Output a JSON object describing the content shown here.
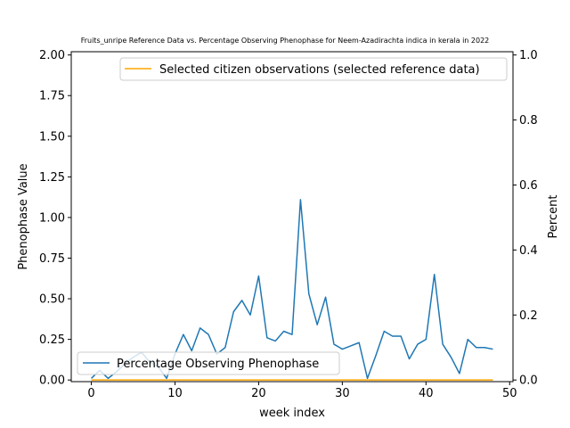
{
  "chart_data": {
    "type": "line",
    "title": "Fruits_unripe Reference Data vs. Percentage Observing Phenophase for Neem-Azadirachta indica in kerala in 2022",
    "xlabel": "week index",
    "ylabel_left": "Phenophase Value",
    "ylabel_right": "Percent",
    "xlim": [
      -2.4,
      50.4
    ],
    "ylim_left": [
      -0.01,
      2.02
    ],
    "ylim_right": [
      -0.005,
      1.01
    ],
    "x_ticks": [
      0,
      10,
      20,
      30,
      40,
      50
    ],
    "y_left_ticks": [
      "0.00",
      "0.25",
      "0.50",
      "0.75",
      "1.00",
      "1.25",
      "1.50",
      "1.75",
      "2.00"
    ],
    "y_right_ticks": [
      "0.0",
      "0.2",
      "0.4",
      "0.6",
      "0.8",
      "1.0"
    ],
    "series": [
      {
        "name": "Selected citizen observations (selected reference data)",
        "axis": "left",
        "color": "#ffa500",
        "x": [
          0,
          48
        ],
        "y": [
          0.0,
          0.0
        ]
      },
      {
        "name": "Percentage Observing Phenophase",
        "axis": "right",
        "color": "#1f77b4",
        "x": [
          0,
          1,
          2,
          3,
          4,
          5,
          6,
          7,
          8,
          9,
          10,
          11,
          12,
          13,
          14,
          15,
          16,
          17,
          18,
          19,
          20,
          21,
          22,
          23,
          24,
          25,
          26,
          27,
          28,
          29,
          30,
          31,
          32,
          33,
          34,
          35,
          36,
          37,
          38,
          39,
          40,
          41,
          42,
          43,
          44,
          45,
          46,
          47,
          48
        ],
        "y": [
          0.005,
          0.03,
          0.005,
          0.025,
          0.05,
          0.07,
          0.085,
          0.055,
          0.04,
          0.005,
          0.08,
          0.14,
          0.09,
          0.16,
          0.14,
          0.08,
          0.1,
          0.21,
          0.245,
          0.2,
          0.32,
          0.13,
          0.12,
          0.15,
          0.14,
          0.555,
          0.265,
          0.17,
          0.255,
          0.11,
          0.095,
          0.105,
          0.115,
          0.005,
          0.075,
          0.15,
          0.135,
          0.135,
          0.065,
          0.11,
          0.125,
          0.325,
          0.11,
          0.07,
          0.02,
          0.125,
          0.1,
          0.1,
          0.095
        ]
      }
    ],
    "legends": [
      {
        "position": "upper right",
        "entries": [
          "Selected citizen observations (selected reference data)"
        ]
      },
      {
        "position": "lower left",
        "entries": [
          "Percentage Observing Phenophase"
        ]
      }
    ],
    "grid": false
  }
}
